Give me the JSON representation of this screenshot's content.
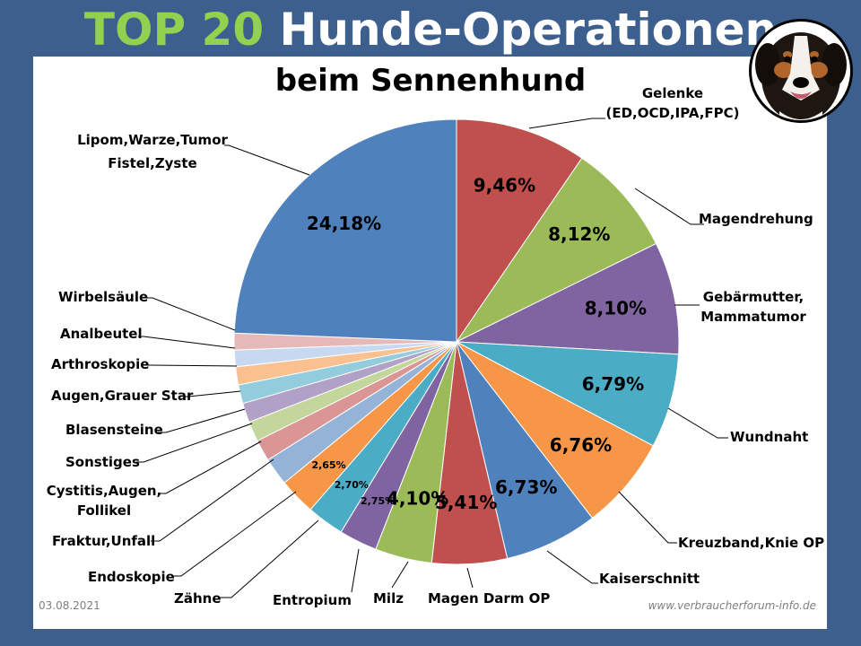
{
  "title_accent": "TOP 20",
  "title_rest": "Hunde-Operationen",
  "subtitle": "beim Sennenhund",
  "footer": {
    "date": "03.08.2021",
    "website": "www.verbraucherforum-info.de"
  },
  "labels": {
    "lipom": [
      "Lipom,Warze,Tumor",
      "Fistel,Zyste"
    ],
    "gelenke": [
      "Gelenke",
      "(ED,OCD,IPA,FPC)"
    ],
    "magendrehung": "Magendrehung",
    "gebaermutter": [
      "Gebärmutter,",
      "Mammatumor"
    ],
    "wundnaht": "Wundnaht",
    "kreuzband": "Kreuzband,Knie OP",
    "kaiserschnitt": "Kaiserschnitt",
    "magendarm": "Magen Darm OP",
    "milz": "Milz",
    "entropium": "Entropium",
    "zaehne": "Zähne",
    "endoskopie": "Endoskopie",
    "fraktur": "Fraktur,Unfall",
    "cystitis": [
      "Cystitis,Augen,",
      "Follikel"
    ],
    "sonstiges": "Sonstiges",
    "blasensteine": "Blasensteine",
    "augen": "Augen,Grauer Star",
    "arthroskopie": "Arthroskopie",
    "analbeutel": "Analbeutel",
    "wirbelsaeule": "Wirbelsäule"
  },
  "chart_data": {
    "type": "pie",
    "title": "TOP 20 Hunde-Operationen beim Sennenhund",
    "unit": "%",
    "slices": [
      {
        "label": "Gelenke (ED,OCD,IPA,FPC)",
        "value": 9.46,
        "display": "9,46%",
        "color": "#c0504d"
      },
      {
        "label": "Magendrehung",
        "value": 8.12,
        "display": "8,12%",
        "color": "#9bbb59"
      },
      {
        "label": "Gebärmutter, Mammatumor",
        "value": 8.1,
        "display": "8,10%",
        "color": "#8064a2"
      },
      {
        "label": "Wundnaht",
        "value": 6.79,
        "display": "6,79%",
        "color": "#4bacc6"
      },
      {
        "label": "Kreuzband,Knie OP",
        "value": 6.76,
        "display": "6,76%",
        "color": "#f79646"
      },
      {
        "label": "Kaiserschnitt",
        "value": 6.73,
        "display": "6,73%",
        "color": "#4f81bd"
      },
      {
        "label": "Magen Darm OP",
        "value": 5.41,
        "display": "5,41%",
        "color": "#c0504d"
      },
      {
        "label": "Milz",
        "value": 4.1,
        "display": "4,10%",
        "color": "#9bbb59"
      },
      {
        "label": "Entropium",
        "value": 2.75,
        "display": "2,75%",
        "color": "#8064a2"
      },
      {
        "label": "Zähne",
        "value": 2.7,
        "display": "2,70%",
        "color": "#4bacc6"
      },
      {
        "label": "Endoskopie",
        "value": 2.65,
        "display": "2,65%",
        "color": "#f79646"
      },
      {
        "label": "Fraktur,Unfall",
        "value": 2.0,
        "display": "",
        "color": "#95b3d7"
      },
      {
        "label": "Cystitis,Augen, Follikel",
        "value": 1.55,
        "display": "",
        "color": "#d99694"
      },
      {
        "label": "Sonstiges",
        "value": 1.45,
        "display": "",
        "color": "#c3d69b"
      },
      {
        "label": "Blasensteine",
        "value": 1.4,
        "display": "",
        "color": "#b2a1c7"
      },
      {
        "label": "Augen,Grauer Star",
        "value": 1.35,
        "display": "",
        "color": "#93cddd"
      },
      {
        "label": "Arthroskopie",
        "value": 1.3,
        "display": "",
        "color": "#fac08f"
      },
      {
        "label": "Analbeutel",
        "value": 1.2,
        "display": "",
        "color": "#c6d9f1"
      },
      {
        "label": "Wirbelsäule",
        "value": 1.2,
        "display": "",
        "color": "#e6b9b8"
      },
      {
        "label": "Lipom,Warze,Tumor Fistel,Zyste",
        "value": 24.18,
        "display": "24,18%",
        "color": "#4f81bd"
      }
    ]
  }
}
